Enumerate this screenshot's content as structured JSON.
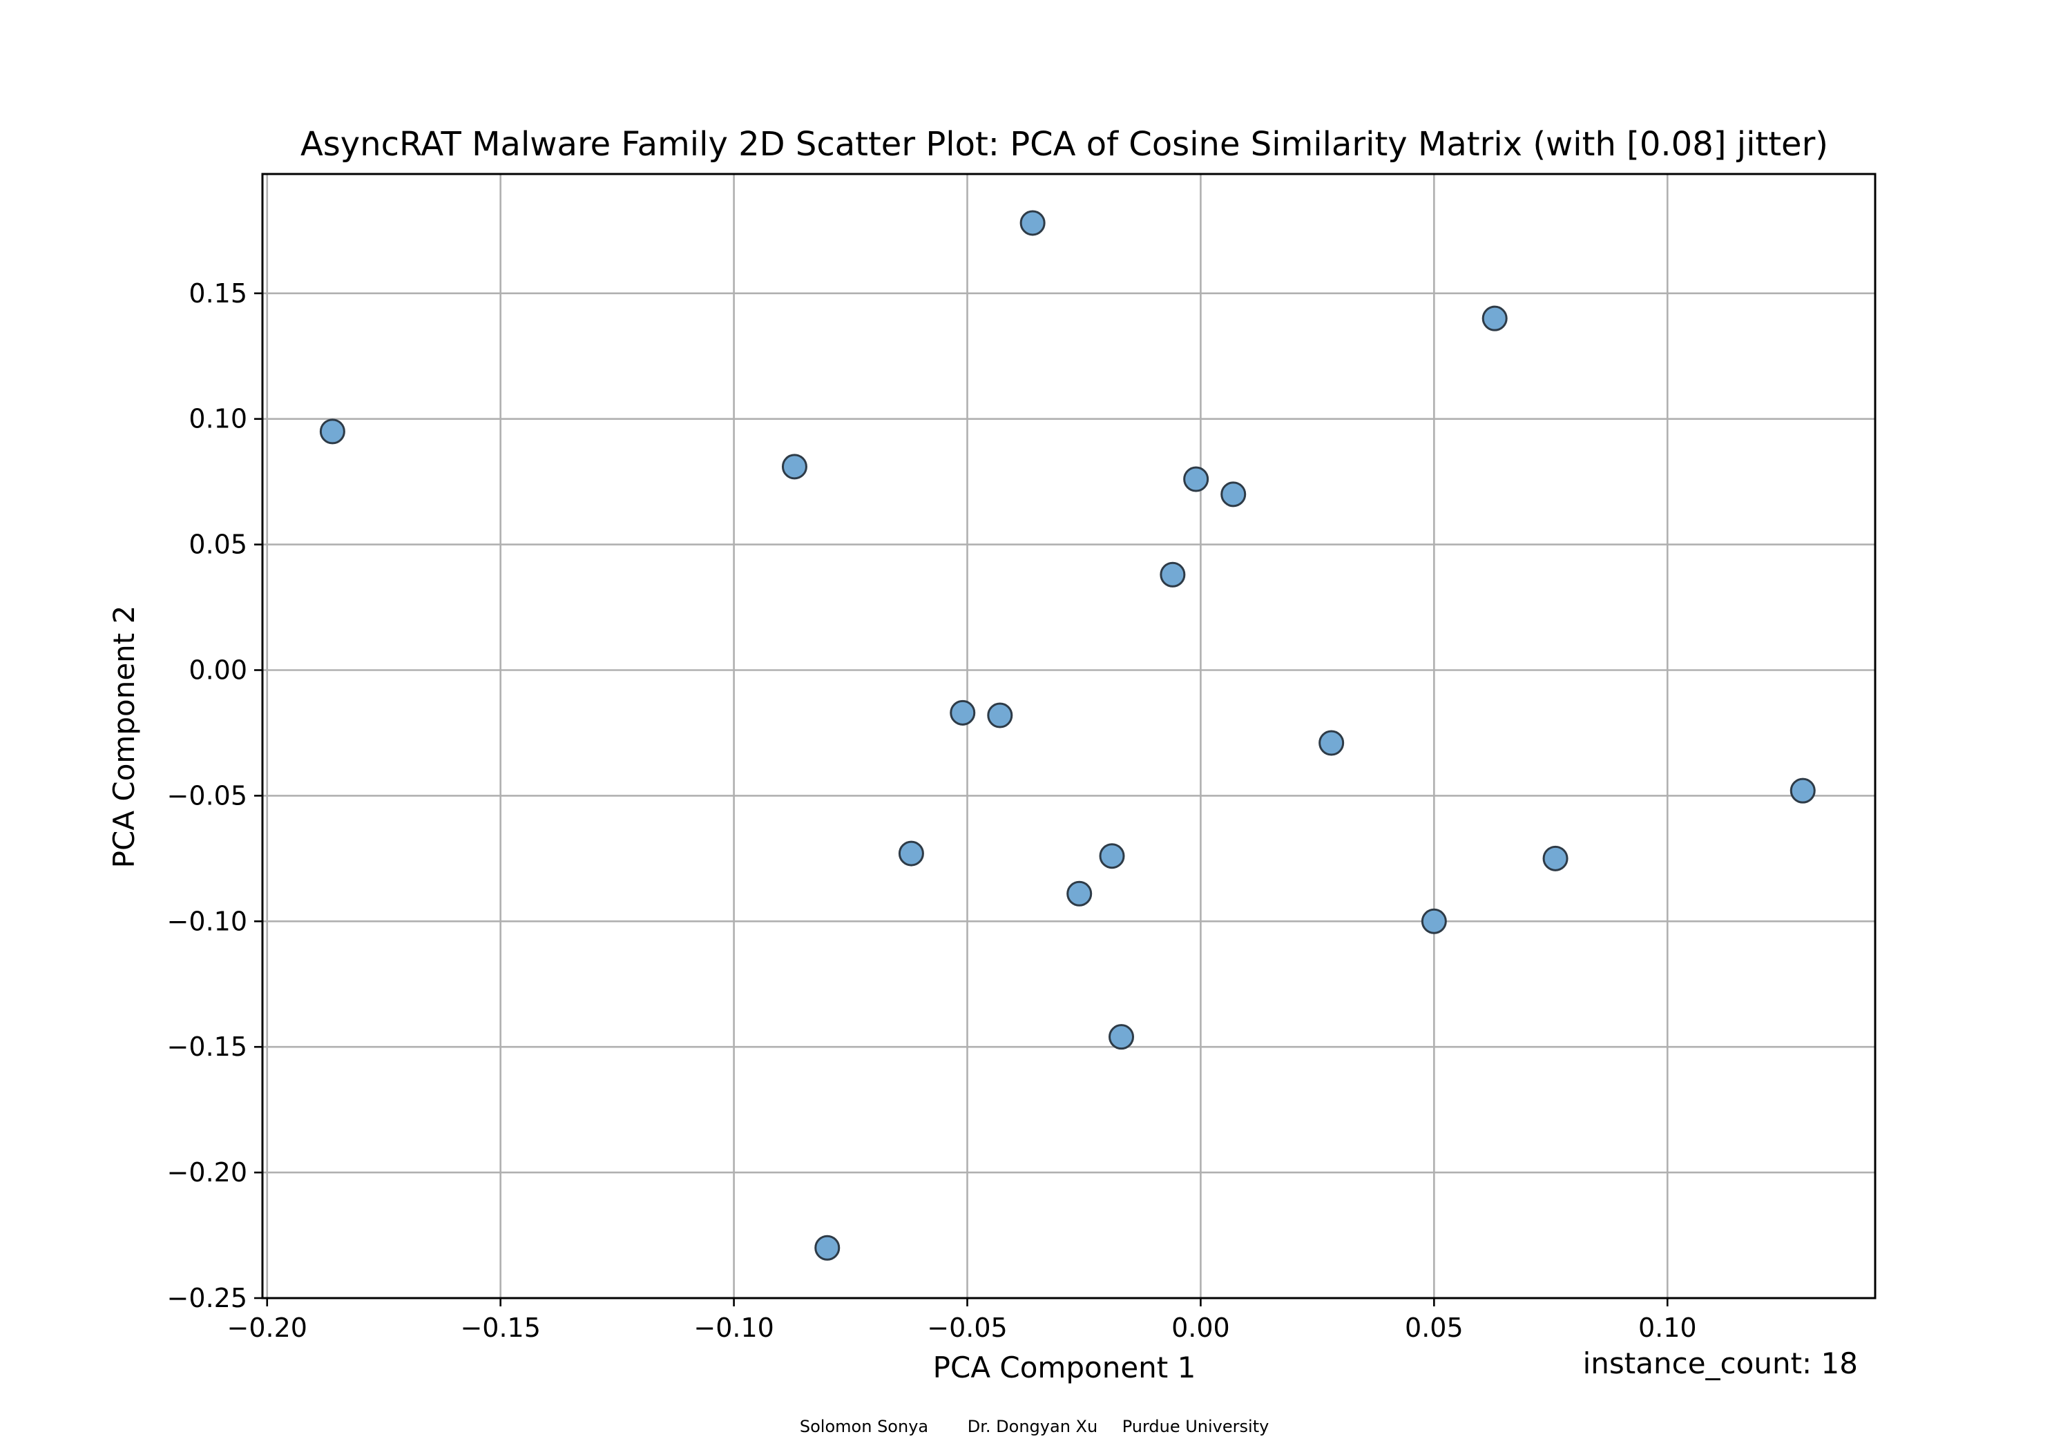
{
  "chart_data": {
    "type": "scatter",
    "title": "AsyncRAT Malware Family 2D Scatter Plot: PCA of Cosine Similarity Matrix (with [0.08] jitter)",
    "xlabel": "PCA Component 1",
    "ylabel": "PCA Component 2",
    "xlim": [
      -0.201,
      0.1445
    ],
    "ylim": [
      -0.25,
      0.1975
    ],
    "grid": true,
    "x_ticks": [
      -0.2,
      -0.15,
      -0.1,
      -0.05,
      0.0,
      0.05,
      0.1
    ],
    "x_tick_labels": [
      "−0.20",
      "−0.15",
      "−0.10",
      "−0.05",
      "0.00",
      "0.05",
      "0.10"
    ],
    "y_ticks": [
      -0.25,
      -0.2,
      -0.15,
      -0.1,
      -0.05,
      0.0,
      0.05,
      0.1,
      0.15
    ],
    "y_tick_labels": [
      "−0.25",
      "−0.20",
      "−0.15",
      "−0.10",
      "−0.05",
      "0.00",
      "0.05",
      "0.10",
      "0.15"
    ],
    "marker_color": "#73a9d4",
    "marker_edge_color": "#2e3b47",
    "points": [
      {
        "x": -0.036,
        "y": 0.178
      },
      {
        "x": 0.063,
        "y": 0.14
      },
      {
        "x": -0.186,
        "y": 0.095
      },
      {
        "x": -0.087,
        "y": 0.081
      },
      {
        "x": -0.001,
        "y": 0.076
      },
      {
        "x": 0.007,
        "y": 0.07
      },
      {
        "x": -0.006,
        "y": 0.038
      },
      {
        "x": -0.051,
        "y": -0.017
      },
      {
        "x": -0.043,
        "y": -0.018
      },
      {
        "x": 0.028,
        "y": -0.029
      },
      {
        "x": 0.129,
        "y": -0.048
      },
      {
        "x": -0.062,
        "y": -0.073
      },
      {
        "x": -0.019,
        "y": -0.074
      },
      {
        "x": 0.076,
        "y": -0.075
      },
      {
        "x": -0.026,
        "y": -0.089
      },
      {
        "x": 0.05,
        "y": -0.1
      },
      {
        "x": -0.017,
        "y": -0.146
      },
      {
        "x": -0.08,
        "y": -0.23
      }
    ],
    "annotation": "instance_count: 18"
  },
  "footer": {
    "author1": "Solomon Sonya",
    "author2": "Dr. Dongyan Xu",
    "affiliation": "Purdue University"
  }
}
